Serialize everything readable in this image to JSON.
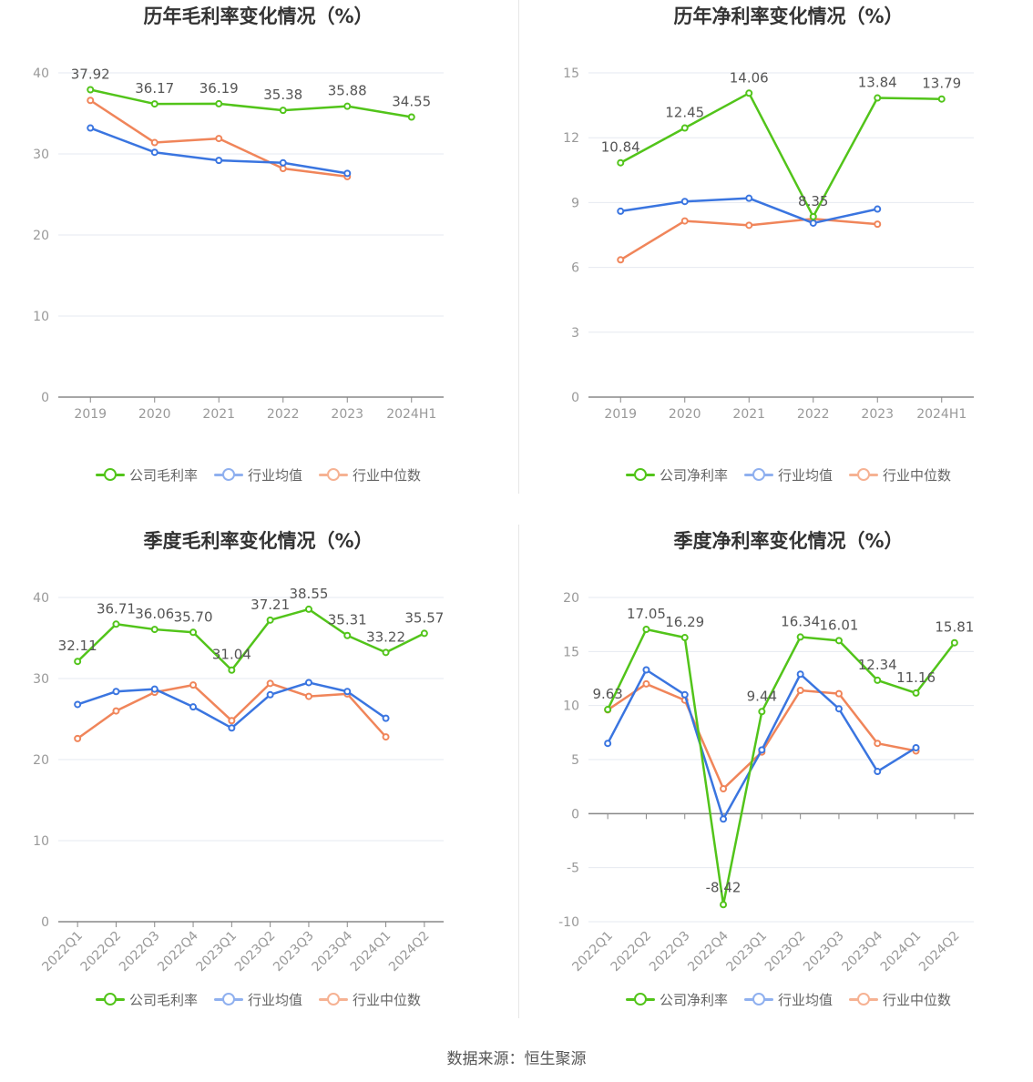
{
  "source": "数据来源：恒生聚源",
  "legend_colors": {
    "company": "#52c41a",
    "avg": "#3a75e0",
    "median": "#f0855a",
    "grid": "#e6e9f0",
    "axis": "#888888"
  },
  "chart_data": [
    {
      "type": "line",
      "title": "历年毛利率变化情况（%）",
      "categories": [
        "2019",
        "2020",
        "2021",
        "2022",
        "2023",
        "2024H1"
      ],
      "ylim": [
        0,
        40
      ],
      "yticks": [
        0,
        10,
        20,
        30,
        40
      ],
      "rotate_x": false,
      "series": [
        {
          "name": "公司毛利率",
          "key": "company",
          "values": [
            37.92,
            36.17,
            36.19,
            35.38,
            35.88,
            34.55
          ],
          "labels": [
            "37.92",
            "36.17",
            "36.19",
            "35.38",
            "35.88",
            "34.55"
          ]
        },
        {
          "name": "行业均值",
          "key": "avg",
          "values": [
            33.2,
            30.2,
            29.2,
            28.9,
            27.6,
            null
          ]
        },
        {
          "name": "行业中位数",
          "key": "median",
          "values": [
            36.6,
            31.4,
            31.9,
            28.2,
            27.2,
            null
          ]
        }
      ]
    },
    {
      "type": "line",
      "title": "历年净利率变化情况（%）",
      "categories": [
        "2019",
        "2020",
        "2021",
        "2022",
        "2023",
        "2024H1"
      ],
      "ylim": [
        0,
        15
      ],
      "yticks": [
        0,
        3,
        6,
        9,
        12,
        15
      ],
      "rotate_x": false,
      "series": [
        {
          "name": "公司净利率",
          "key": "company",
          "values": [
            10.84,
            12.45,
            14.06,
            8.35,
            13.84,
            13.79
          ],
          "labels": [
            "10.84",
            "12.45",
            "14.06",
            "8.35",
            "13.84",
            "13.79"
          ]
        },
        {
          "name": "行业均值",
          "key": "avg",
          "values": [
            8.6,
            9.05,
            9.2,
            8.05,
            8.7,
            null
          ]
        },
        {
          "name": "行业中位数",
          "key": "median",
          "values": [
            6.35,
            8.15,
            7.95,
            8.25,
            8.0,
            null
          ]
        }
      ]
    },
    {
      "type": "line",
      "title": "季度毛利率变化情况（%）",
      "categories": [
        "2022Q1",
        "2022Q2",
        "2022Q3",
        "2022Q4",
        "2023Q1",
        "2023Q2",
        "2023Q3",
        "2023Q4",
        "2024Q1",
        "2024Q2"
      ],
      "ylim": [
        0,
        40
      ],
      "yticks": [
        0,
        10,
        20,
        30,
        40
      ],
      "rotate_x": true,
      "series": [
        {
          "name": "公司毛利率",
          "key": "company",
          "values": [
            32.11,
            36.71,
            36.06,
            35.7,
            31.04,
            37.21,
            38.55,
            35.31,
            33.22,
            35.57
          ],
          "labels": [
            "32.11",
            "36.71",
            "36.06",
            "35.70",
            "31.04",
            "37.21",
            "38.55",
            "35.31",
            "33.22",
            "35.57"
          ]
        },
        {
          "name": "行业均值",
          "key": "avg",
          "values": [
            26.8,
            28.4,
            28.7,
            26.5,
            23.9,
            28.0,
            29.5,
            28.4,
            25.1,
            null
          ]
        },
        {
          "name": "行业中位数",
          "key": "median",
          "values": [
            22.6,
            26.0,
            28.3,
            29.2,
            24.8,
            29.4,
            27.8,
            28.1,
            22.8,
            null
          ]
        }
      ]
    },
    {
      "type": "line",
      "title": "季度净利率变化情况（%）",
      "categories": [
        "2022Q1",
        "2022Q2",
        "2022Q3",
        "2022Q4",
        "2023Q1",
        "2023Q2",
        "2023Q3",
        "2023Q4",
        "2024Q1",
        "2024Q2"
      ],
      "ylim": [
        -10,
        20
      ],
      "yticks": [
        -10,
        -5,
        0,
        5,
        10,
        15,
        20
      ],
      "rotate_x": true,
      "series": [
        {
          "name": "公司净利率",
          "key": "company",
          "values": [
            9.63,
            17.05,
            16.29,
            -8.42,
            9.44,
            16.34,
            16.01,
            12.34,
            11.16,
            15.81
          ],
          "labels": [
            "9.63",
            "17.05",
            "16.29",
            "-8.42",
            "9.44",
            "16.34",
            "16.01",
            "12.34",
            "11.16",
            "15.81"
          ]
        },
        {
          "name": "行业均值",
          "key": "avg",
          "values": [
            6.5,
            13.3,
            11.0,
            -0.5,
            5.9,
            12.9,
            9.7,
            3.9,
            6.1,
            null
          ]
        },
        {
          "name": "行业中位数",
          "key": "median",
          "values": [
            9.6,
            12.0,
            10.5,
            2.3,
            5.7,
            11.4,
            11.1,
            6.5,
            5.8,
            null
          ]
        }
      ]
    }
  ]
}
